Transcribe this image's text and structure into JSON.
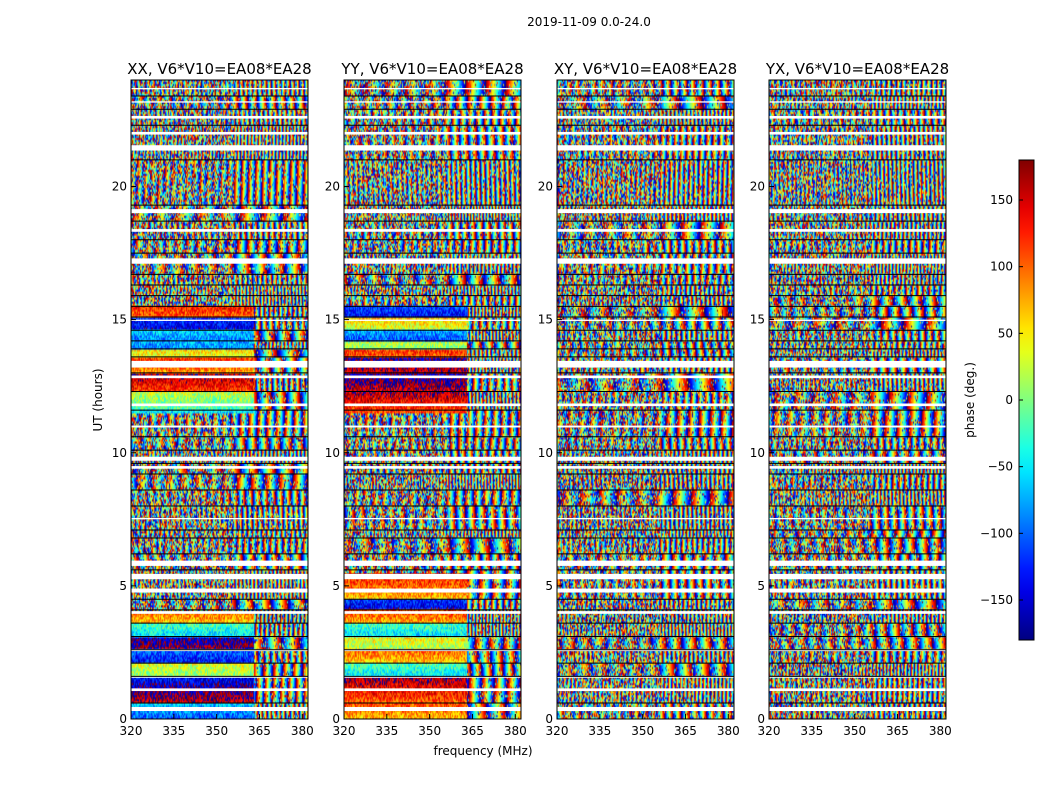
{
  "figure": {
    "suptitle": "2019-11-09 0.0-24.0",
    "xlabel": "frequency (MHz)",
    "ylabel": "UT (hours)"
  },
  "chart_data": [
    {
      "type": "heatmap",
      "title": "XX, V6*V10=EA08*EA28",
      "xlim": [
        320,
        382
      ],
      "ylim": [
        0,
        24
      ],
      "xticks": [
        320,
        335,
        350,
        365,
        380
      ],
      "yticks": [
        0,
        5,
        10,
        15,
        20
      ],
      "colormap": "jet",
      "value_range": [
        -180,
        180
      ],
      "visual_features": {
        "coherent_band_hours": [
          [
            0.0,
            4.0
          ],
          [
            11.5,
            15.5
          ]
        ],
        "coherent_band_freq_max": 363,
        "fringe_spacing": 3.5
      }
    },
    {
      "type": "heatmap",
      "title": "YY, V6*V10=EA08*EA28",
      "xlim": [
        320,
        382
      ],
      "ylim": [
        0,
        24
      ],
      "xticks": [
        320,
        335,
        350,
        365,
        380
      ],
      "yticks": [
        0,
        5,
        10,
        15,
        20
      ],
      "colormap": "jet",
      "value_range": [
        -180,
        180
      ],
      "visual_features": {
        "coherent_band_hours": [
          [
            0.0,
            5.5
          ],
          [
            11.5,
            15.5
          ]
        ],
        "coherent_band_freq_max": 363,
        "fringe_spacing": 3.0
      }
    },
    {
      "type": "heatmap",
      "title": "XY, V6*V10=EA08*EA28",
      "xlim": [
        320,
        382
      ],
      "ylim": [
        0,
        24
      ],
      "xticks": [
        320,
        335,
        350,
        365,
        380
      ],
      "yticks": [
        0,
        5,
        10,
        15,
        20
      ],
      "colormap": "jet",
      "value_range": [
        -180,
        180
      ],
      "visual_features": {
        "coherent_band_hours": [],
        "coherent_band_freq_max": 0,
        "fringe_spacing": 3.5
      }
    },
    {
      "type": "heatmap",
      "title": "YX, V6*V10=EA08*EA28",
      "xlim": [
        320,
        382
      ],
      "ylim": [
        0,
        24
      ],
      "xticks": [
        320,
        335,
        350,
        365,
        380
      ],
      "yticks": [
        0,
        5,
        10,
        15,
        20
      ],
      "colormap": "jet",
      "value_range": [
        -180,
        180
      ],
      "visual_features": {
        "coherent_band_hours": [],
        "coherent_band_freq_max": 0,
        "fringe_spacing": 3.5
      }
    }
  ],
  "colorbar": {
    "label": "phase (deg.)",
    "range": [
      -180,
      180
    ],
    "ticks": [
      150,
      100,
      50,
      0,
      -50,
      -100,
      -150
    ],
    "tick_labels": [
      "150",
      "100",
      "50",
      "0",
      "−50",
      "−100",
      "−150"
    ],
    "colormap": "jet"
  },
  "flagged_hours": [
    [
      0.3,
      0.45
    ],
    [
      1.05,
      1.15
    ],
    [
      1.55,
      1.6
    ],
    [
      2.55,
      2.62
    ],
    [
      3.95,
      4.05
    ],
    [
      4.75,
      4.9
    ],
    [
      5.25,
      5.45
    ],
    [
      5.75,
      5.95
    ],
    [
      7.5,
      7.55
    ],
    [
      9.4,
      9.5
    ],
    [
      9.7,
      9.85
    ],
    [
      10.95,
      11.02
    ],
    [
      11.75,
      11.85
    ],
    [
      12.8,
      12.9
    ],
    [
      13.2,
      13.45
    ],
    [
      14.95,
      15.0
    ],
    [
      17.1,
      17.3
    ],
    [
      18.3,
      18.4
    ],
    [
      19.0,
      19.15
    ],
    [
      21.35,
      21.55
    ],
    [
      21.95,
      22.05
    ],
    [
      22.55,
      22.65
    ],
    [
      23.15,
      23.2
    ],
    [
      23.65,
      23.7
    ]
  ],
  "segment_boundaries_hours": [
    0.6,
    1.6,
    2.1,
    2.6,
    3.1,
    3.6,
    4.1,
    4.5,
    5.6,
    6.2,
    6.8,
    7.1,
    8.0,
    8.6,
    9.2,
    9.6,
    10.1,
    10.6,
    11.6,
    12.3,
    13.0,
    13.6,
    13.9,
    14.2,
    14.6,
    15.1,
    15.5,
    15.9,
    16.3,
    16.7,
    17.5,
    18.0,
    18.7,
    19.3,
    21.0,
    22.3,
    22.9,
    23.4
  ]
}
